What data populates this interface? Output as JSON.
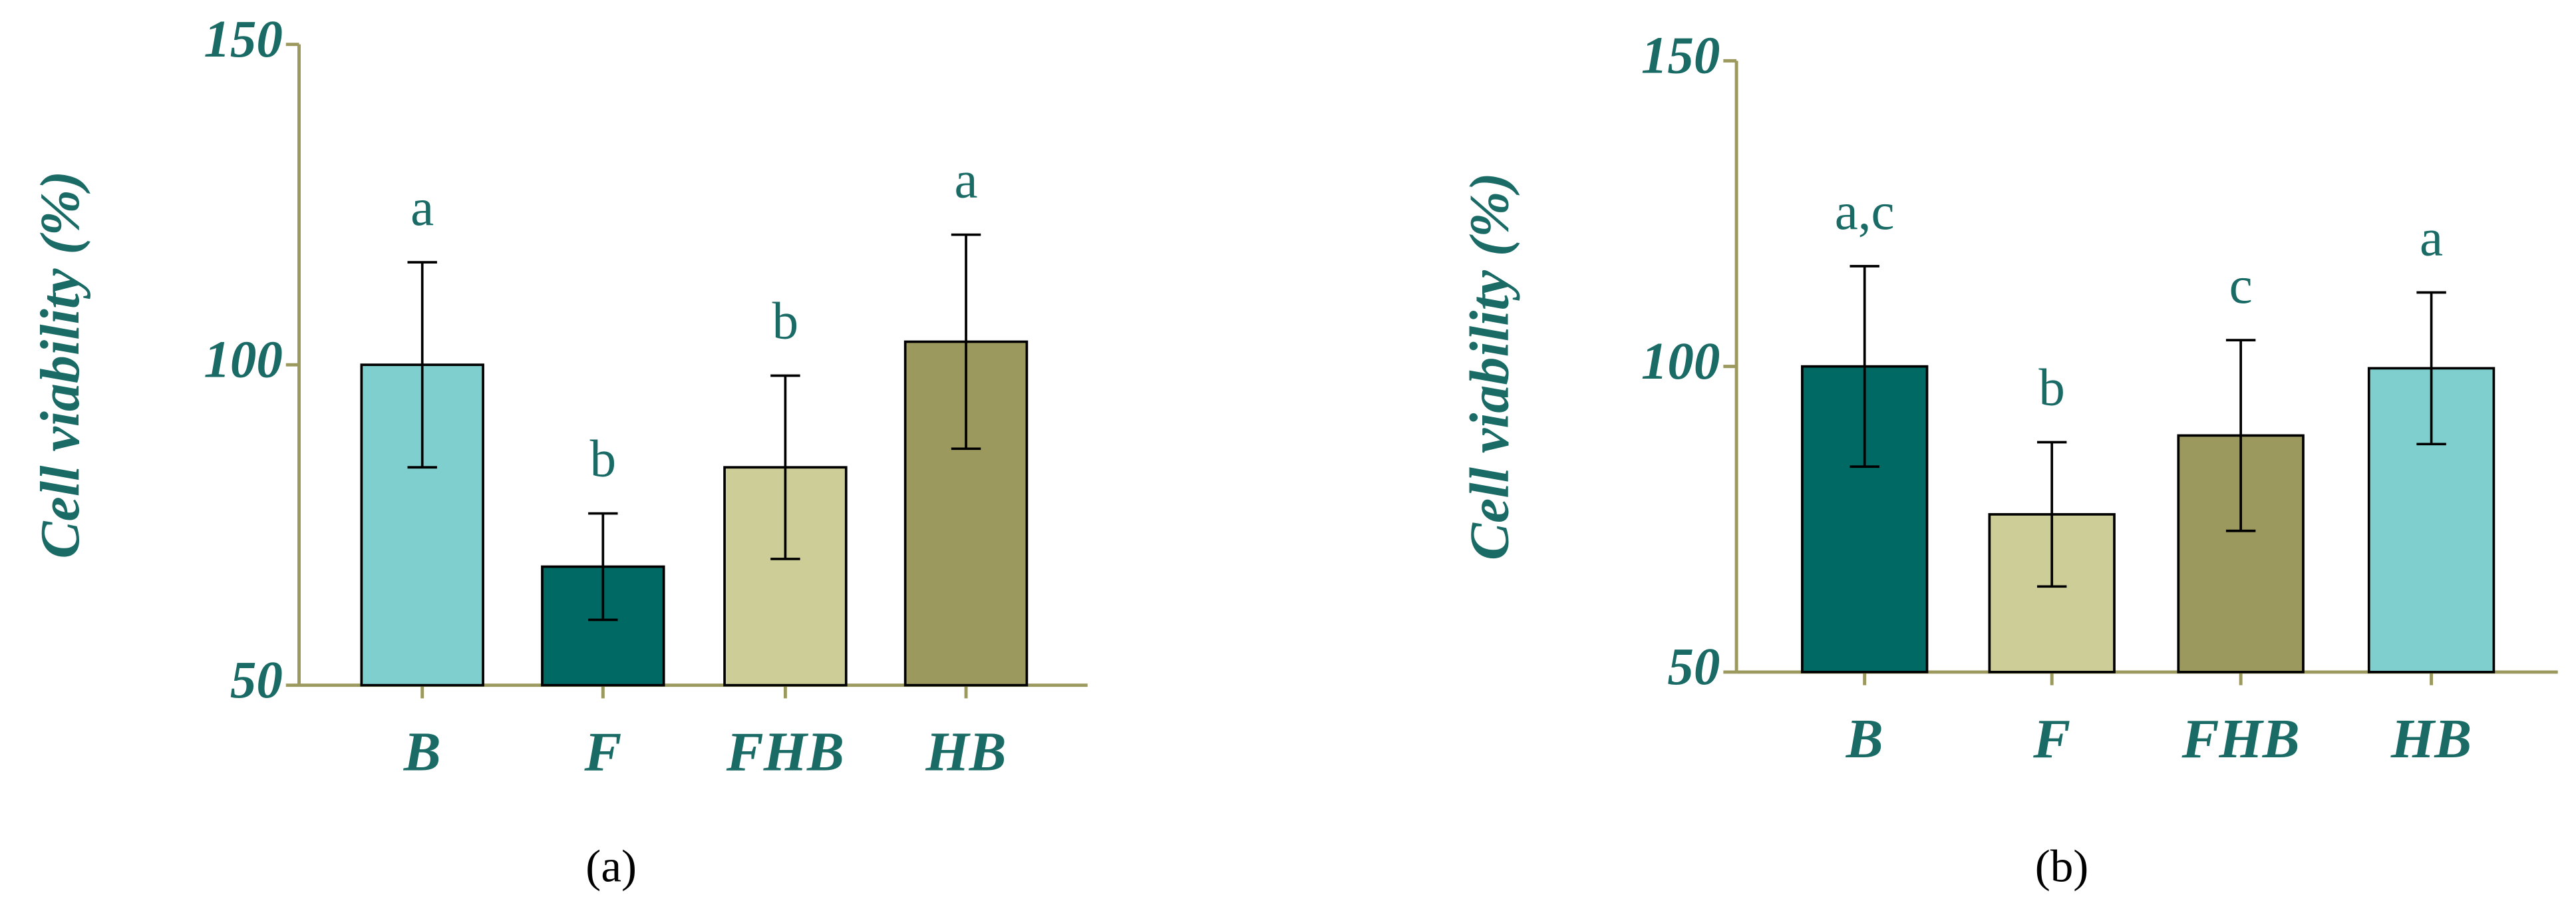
{
  "chart_data": [
    {
      "type": "bar",
      "panel_label": "(a)",
      "ylabel": "Cell viability (%)",
      "categories": [
        "B",
        "F",
        "FHB",
        "HB"
      ],
      "values": [
        100,
        68.5,
        84,
        103.6
      ],
      "errors": [
        16,
        8.3,
        14.3,
        16.7
      ],
      "annotations": [
        "a",
        "b",
        "b",
        "a"
      ],
      "colors": [
        "#7ecfcd",
        "#006963",
        "#cdcd98",
        "#9b995e"
      ],
      "ylim": [
        50,
        150
      ],
      "yticks": [
        50,
        100,
        150
      ]
    },
    {
      "type": "bar",
      "panel_label": "(b)",
      "ylabel": "Cell viability (%)",
      "categories": [
        "B",
        "F",
        "FHB",
        "HB"
      ],
      "values": [
        100,
        75.8,
        88.7,
        99.7
      ],
      "errors": [
        16.4,
        11.8,
        15.6,
        12.4
      ],
      "annotations": [
        "a,c",
        "b",
        "c",
        "a"
      ],
      "colors": [
        "#006963",
        "#cdcd98",
        "#9b995e",
        "#7ecfcd"
      ],
      "ylim": [
        50,
        150
      ],
      "yticks": [
        50,
        100,
        150
      ]
    }
  ]
}
